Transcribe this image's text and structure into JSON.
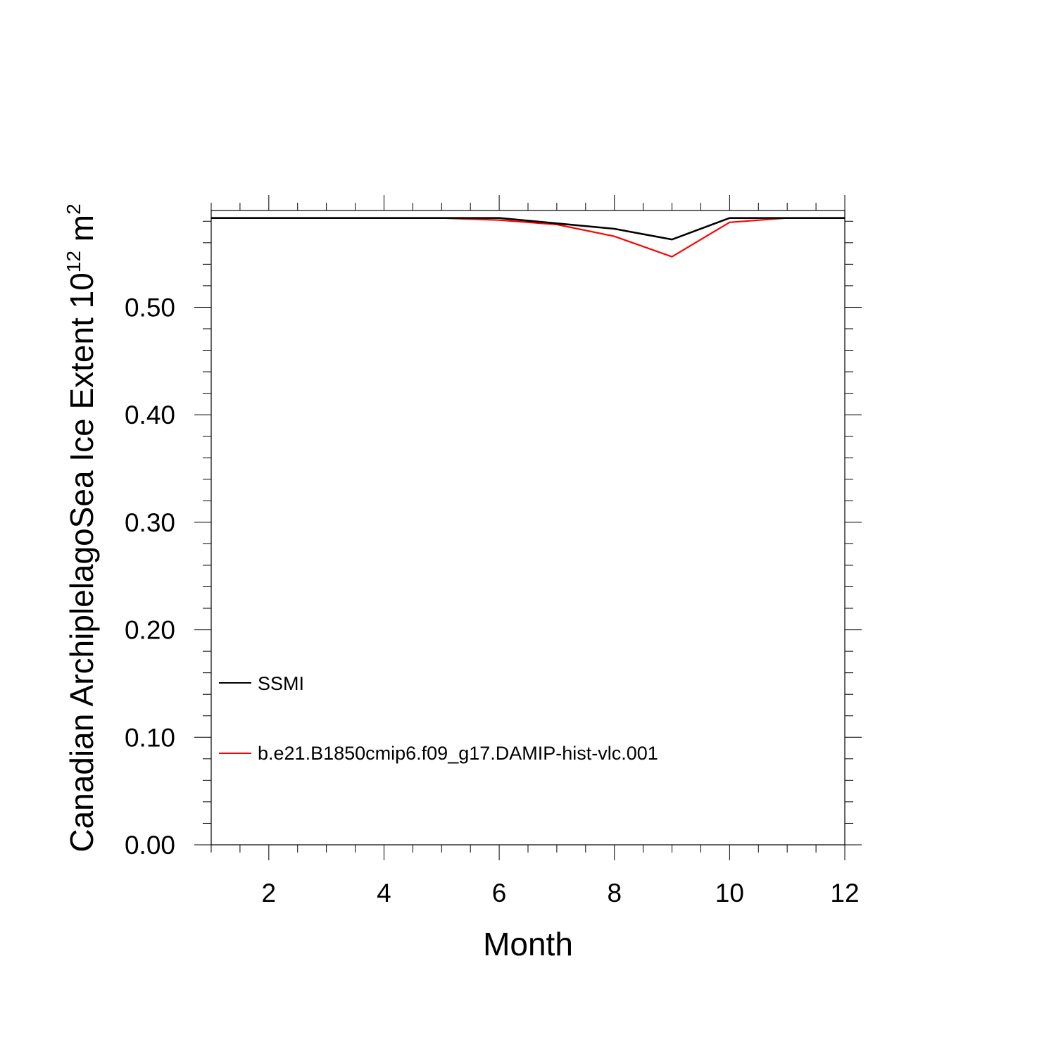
{
  "chart_data": {
    "type": "line",
    "xlabel": "Month",
    "ylabel_base": "Canadian ArchiplelagoSea Ice Extent 10",
    "ylabel_exp": "12",
    "ylabel_unit": " m",
    "ylabel_unit_exp": "2",
    "xlim": [
      1,
      12
    ],
    "ylim": [
      0,
      0.59
    ],
    "x_ticks": [
      2,
      4,
      6,
      8,
      10,
      12
    ],
    "x_tick_labels": [
      "2",
      "4",
      "6",
      "8",
      "10",
      "12"
    ],
    "y_ticks": [
      0,
      0.1,
      0.2,
      0.3,
      0.4,
      0.5
    ],
    "y_tick_labels": [
      "0.00",
      "0.10",
      "0.20",
      "0.30",
      "0.40",
      "0.50"
    ],
    "x": [
      1,
      2,
      3,
      4,
      5,
      6,
      7,
      8,
      9,
      10,
      11,
      12
    ],
    "series": [
      {
        "name": "SSMI",
        "color": "#000000",
        "values": [
          0.583,
          0.583,
          0.583,
          0.583,
          0.583,
          0.583,
          0.578,
          0.573,
          0.563,
          0.583,
          0.583,
          0.583
        ]
      },
      {
        "name": "b.e21.B1850cmip6.f09_g17.DAMIP-hist-vlc.001",
        "color": "#ff0000",
        "values": [
          0.583,
          0.583,
          0.583,
          0.583,
          0.583,
          0.581,
          0.577,
          0.566,
          0.547,
          0.579,
          0.583,
          0.583
        ]
      }
    ],
    "grid": false,
    "legend_position": "lower-left"
  }
}
